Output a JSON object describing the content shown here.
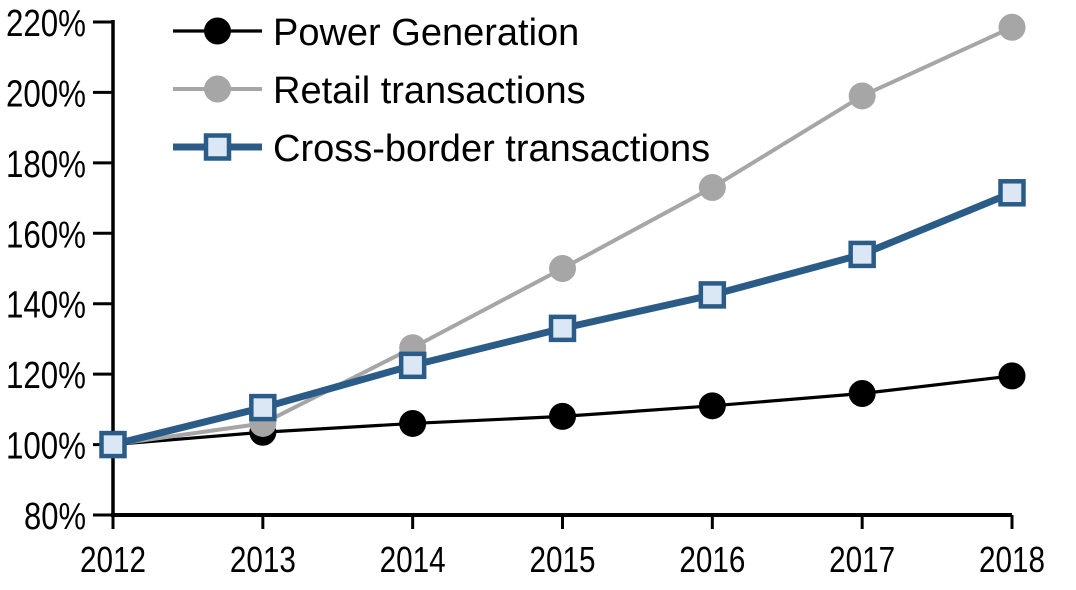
{
  "chart_data": {
    "type": "line",
    "x": [
      2012,
      2013,
      2014,
      2015,
      2016,
      2017,
      2018
    ],
    "xticklabels": [
      "2012",
      "2013",
      "2014",
      "2015",
      "2016",
      "2017",
      "2018"
    ],
    "yticklabels": [
      "80%",
      "100%",
      "120%",
      "140%",
      "160%",
      "180%",
      "200%",
      "220%"
    ],
    "ylim": [
      80,
      220
    ],
    "ytick_step": 20,
    "grid": false,
    "legend_position": "top-left",
    "background_color": "#ffffff",
    "axis_color": "#000000",
    "series": [
      {
        "name": "Power Generation",
        "values": [
          100,
          103.5,
          106,
          108,
          111,
          114.5,
          119.5
        ],
        "color": "#000000",
        "marker": "circle",
        "marker_fill": "#000000",
        "line_width": 3.2
      },
      {
        "name": "Retail transactions",
        "values": [
          100,
          106,
          127.5,
          150,
          173,
          199,
          218.5
        ],
        "color": "#a6a6a6",
        "marker": "circle",
        "marker_fill": "#a6a6a6",
        "line_width": 4
      },
      {
        "name": "Cross-border transactions",
        "values": [
          100,
          110.5,
          122.5,
          133,
          142.5,
          154,
          171.5
        ],
        "color": "#2b5c87",
        "marker": "square",
        "marker_fill": "#dbe7f4",
        "line_width": 7
      }
    ]
  }
}
